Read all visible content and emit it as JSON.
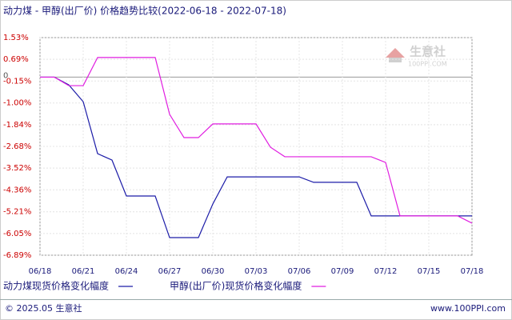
{
  "chart_data": {
    "type": "line",
    "title": "动力煤 - 甲醇(出厂价) 价格趋势比较(2022-06-18 - 2022-07-18)",
    "categories": [
      "06/18",
      null,
      null,
      "06/21",
      null,
      null,
      "06/24",
      null,
      null,
      "06/27",
      null,
      null,
      "06/30",
      null,
      null,
      "07/03",
      null,
      null,
      "07/06",
      null,
      null,
      "07/09",
      null,
      null,
      "07/12",
      null,
      null,
      "07/15",
      null,
      null,
      "07/18"
    ],
    "series": [
      {
        "name": "动力煤现货价格变化幅度",
        "color": "#1c1ca8",
        "values": [
          0,
          0,
          -0.3,
          -0.95,
          -2.96,
          -3.21,
          -4.6,
          -4.6,
          -4.6,
          -6.21,
          -6.21,
          -6.21,
          -4.91,
          -3.86,
          -3.86,
          -3.86,
          -3.86,
          -3.86,
          -3.86,
          -4.07,
          -4.07,
          -4.07,
          -4.07,
          -5.37,
          -5.37,
          -5.37,
          -5.37,
          -5.37,
          -5.37,
          -5.37,
          -5.37
        ]
      },
      {
        "name": "甲醇(出厂价)现货价格变化幅度",
        "color": "#e01ee0",
        "values": [
          0,
          0,
          -0.33,
          -0.33,
          0.76,
          0.76,
          0.76,
          0.76,
          0.76,
          -1.44,
          -2.34,
          -2.34,
          -1.81,
          -1.81,
          -1.81,
          -1.81,
          -2.71,
          -3.08,
          -3.08,
          -3.08,
          -3.08,
          -3.08,
          -3.08,
          -3.08,
          -3.3,
          -5.37,
          -5.37,
          -5.37,
          -5.37,
          -5.37,
          -5.65
        ]
      }
    ],
    "ylim": [
      -6.89,
      1.53
    ],
    "yticks": [
      {
        "value": 1.53,
        "label": "1.53%"
      },
      {
        "value": 0.69,
        "label": "0.69%"
      },
      {
        "value": -0.15,
        "label": "-0.15%"
      },
      {
        "value": -1.0,
        "label": "-1.00%"
      },
      {
        "value": -1.84,
        "label": "-1.84%"
      },
      {
        "value": -2.68,
        "label": "-2.68%"
      },
      {
        "value": -3.52,
        "label": "-3.52%"
      },
      {
        "value": -4.36,
        "label": "-4.36%"
      },
      {
        "value": -5.21,
        "label": "-5.21%"
      },
      {
        "value": -6.05,
        "label": "-6.05%"
      },
      {
        "value": -6.89,
        "label": "-6.89%"
      }
    ],
    "baseline": 0,
    "grid": true,
    "watermark": "生意社",
    "watermark_sub": "100PPI.COM",
    "footer_left": "© 2025.05 生意社",
    "footer_right": "www.100PPI.com"
  }
}
